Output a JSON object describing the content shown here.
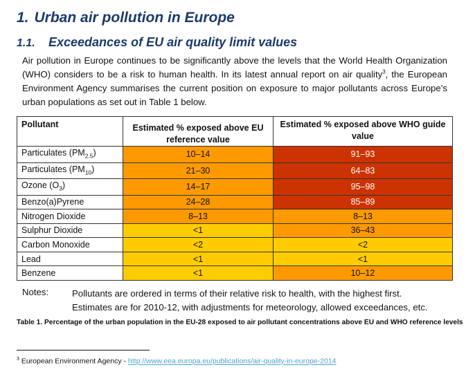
{
  "heading1": {
    "number": "1.",
    "title": "Urban air pollution in Europe"
  },
  "heading2": {
    "number": "1.1.",
    "title": "Exceedances of EU air quality limit values"
  },
  "intro": {
    "before_ref": "Air pollution in Europe continues to be significantly above the levels that the World Health Organization (WHO) considers to be a risk to human health. In its latest annual report on air quality",
    "ref_mark": "3",
    "after_ref": ", the European Environment Agency summarises the current position on exposure to major pollutants across Europe’s urban populations as set out in Table 1 below."
  },
  "table": {
    "headers": {
      "pollutant": "Pollutant",
      "eu": "Estimated % exposed above EU reference value",
      "who": "Estimated % exposed above WHO guide value"
    },
    "rows": [
      {
        "name": "Particulates (PM",
        "sub": "2.5",
        "tail": ")",
        "eu": "10–14",
        "eu_color": "#fe9a00",
        "who": "91–93",
        "who_color": "#cc3300",
        "who_text": "#ffffff"
      },
      {
        "name": "Particulates (PM",
        "sub": "10",
        "tail": ")",
        "eu": "21–30",
        "eu_color": "#fe9a00",
        "who": "64–83",
        "who_color": "#cc3300",
        "who_text": "#ffffff"
      },
      {
        "name": "Ozone (O",
        "sub": "3",
        "tail": ")",
        "eu": "14–17",
        "eu_color": "#fe9a00",
        "who": "95–98",
        "who_color": "#cc3300",
        "who_text": "#ffffff"
      },
      {
        "name": "Benzo(a)Pyrene",
        "sub": "",
        "tail": "",
        "eu": "24–28",
        "eu_color": "#fe9a00",
        "who": "85–89",
        "who_color": "#cc3300",
        "who_text": "#ffffff"
      },
      {
        "name": "Nitrogen Dioxide",
        "sub": "",
        "tail": "",
        "eu": "8–13",
        "eu_color": "#fe9a00",
        "who": "8–13",
        "who_color": "#fe9a00",
        "who_text": "#111111"
      },
      {
        "name": "Sulphur Dioxide",
        "sub": "",
        "tail": "",
        "eu": "<1",
        "eu_color": "#ffcc00",
        "who": "36–43",
        "who_color": "#fe9a00",
        "who_text": "#111111"
      },
      {
        "name": "Carbon Monoxide",
        "sub": "",
        "tail": "",
        "eu": "<2",
        "eu_color": "#ffcc00",
        "who": "<2",
        "who_color": "#ffcc00",
        "who_text": "#111111"
      },
      {
        "name": "Lead",
        "sub": "",
        "tail": "",
        "eu": "<1",
        "eu_color": "#ffcc00",
        "who": "<1",
        "who_color": "#ffcc00",
        "who_text": "#111111"
      },
      {
        "name": "Benzene",
        "sub": "",
        "tail": "",
        "eu": "<1",
        "eu_color": "#ffcc00",
        "who": "10–12",
        "who_color": "#fe9a00",
        "who_text": "#111111"
      }
    ]
  },
  "notes": {
    "label": "Notes:",
    "line1": "Pollutants are ordered in terms of their relative risk to health, with the highest first.",
    "line2": "Estimates are for 2010-12, with adjustments for meteorology, allowed exceedances, etc."
  },
  "caption": "Table 1.  Percentage of the urban population in the EU-28 exposed to air pollutant concentrations above EU and WHO reference levels",
  "footnote": {
    "mark": "3",
    "text": " European Environment Agency - ",
    "link": "http://www.eea.europa.eu/publications/air-quality-in-europe-2014"
  },
  "colors": {
    "heading": "#1b3a6b",
    "highest": "#cc3300",
    "high": "#fe9a00",
    "low": "#ffcc00",
    "link": "#4aa3c8"
  }
}
